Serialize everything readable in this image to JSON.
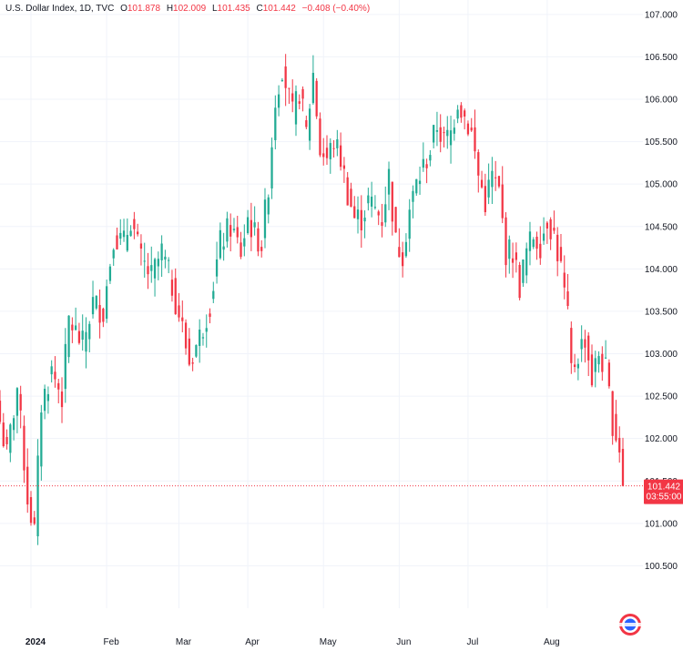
{
  "header": {
    "symbol": "U.S. Dollar Index, 1D, TVC",
    "o_label": "O",
    "o_value": "101.878",
    "h_label": "H",
    "h_value": "102.009",
    "l_label": "L",
    "l_value": "101.435",
    "c_label": "C",
    "c_value": "101.442",
    "change": "−0.408 (−0.40%)"
  },
  "colors": {
    "up": "#22ab94",
    "down": "#f23645",
    "grid": "#f0f3fa",
    "price_label_bg": "#f23645"
  },
  "price_label": {
    "price": "101.442",
    "countdown": "03:55:00"
  },
  "logo_icon": "tradingview-flag-logo",
  "chart_data": {
    "type": "candlestick",
    "title": "U.S. Dollar Index, 1D, TVC",
    "ylim": [
      100.0,
      107.17
    ],
    "y_ticks": [
      100.5,
      101.0,
      101.5,
      102.0,
      102.5,
      103.0,
      103.5,
      104.0,
      104.5,
      105.0,
      105.5,
      106.0,
      106.5,
      107.0
    ],
    "y_tick_labels": [
      "100.500",
      "101.000",
      "101.500",
      "102.000",
      "102.500",
      "103.000",
      "103.500",
      "104.000",
      "104.500",
      "105.000",
      "105.500",
      "106.000",
      "106.500",
      "107.000"
    ],
    "x_tick_labels": [
      {
        "label": "2024",
        "index": 9,
        "bold": true
      },
      {
        "label": "Feb",
        "index": 31
      },
      {
        "label": "Mar",
        "index": 52
      },
      {
        "label": "Apr",
        "index": 72
      },
      {
        "label": "May",
        "index": 94
      },
      {
        "label": "Jun",
        "index": 116
      },
      {
        "label": "Jul",
        "index": 136
      },
      {
        "label": "Aug",
        "index": 159
      }
    ],
    "last_close": 101.442,
    "anchors": [
      [
        0,
        102.2
      ],
      [
        2,
        101.8
      ],
      [
        5,
        102.6
      ],
      [
        8,
        101.3
      ],
      [
        10,
        100.9
      ],
      [
        12,
        102.4
      ],
      [
        15,
        102.8
      ],
      [
        18,
        102.5
      ],
      [
        20,
        103.4
      ],
      [
        24,
        103.1
      ],
      [
        27,
        103.6
      ],
      [
        30,
        103.5
      ],
      [
        33,
        104.4
      ],
      [
        36,
        104.3
      ],
      [
        38,
        104.6
      ],
      [
        41,
        104.1
      ],
      [
        44,
        103.9
      ],
      [
        47,
        104.2
      ],
      [
        50,
        103.8
      ],
      [
        53,
        103.3
      ],
      [
        55,
        102.9
      ],
      [
        58,
        103.2
      ],
      [
        61,
        103.6
      ],
      [
        64,
        104.3
      ],
      [
        67,
        104.5
      ],
      [
        70,
        104.2
      ],
      [
        72,
        104.6
      ],
      [
        74,
        104.4
      ],
      [
        76,
        104.3
      ],
      [
        78,
        105.0
      ],
      [
        80,
        106.0
      ],
      [
        82,
        106.4
      ],
      [
        85,
        105.8
      ],
      [
        87,
        106.1
      ],
      [
        89,
        105.6
      ],
      [
        91,
        106.3
      ],
      [
        93,
        105.4
      ],
      [
        95,
        105.3
      ],
      [
        97,
        105.5
      ],
      [
        99,
        105.3
      ],
      [
        101,
        104.9
      ],
      [
        103,
        104.6
      ],
      [
        105,
        104.6
      ],
      [
        107,
        104.8
      ],
      [
        109,
        104.7
      ],
      [
        111,
        104.6
      ],
      [
        113,
        105.1
      ],
      [
        115,
        104.3
      ],
      [
        117,
        104.2
      ],
      [
        119,
        104.7
      ],
      [
        121,
        105.0
      ],
      [
        123,
        105.2
      ],
      [
        125,
        105.4
      ],
      [
        127,
        105.7
      ],
      [
        129,
        105.5
      ],
      [
        131,
        105.6
      ],
      [
        133,
        106.0
      ],
      [
        135,
        105.8
      ],
      [
        137,
        105.6
      ],
      [
        139,
        105.1
      ],
      [
        141,
        104.8
      ],
      [
        143,
        105.1
      ],
      [
        145,
        104.9
      ],
      [
        147,
        104.2
      ],
      [
        149,
        104.2
      ],
      [
        151,
        103.8
      ],
      [
        153,
        104.2
      ],
      [
        155,
        104.4
      ],
      [
        157,
        104.3
      ],
      [
        159,
        104.6
      ],
      [
        161,
        104.4
      ],
      [
        163,
        104.0
      ],
      [
        165,
        103.4
      ],
      [
        166,
        102.8
      ],
      [
        168,
        103.0
      ],
      [
        170,
        103.2
      ],
      [
        172,
        102.7
      ],
      [
        174,
        103.0
      ],
      [
        176,
        102.8
      ],
      [
        178,
        102.2
      ],
      [
        180,
        101.9
      ],
      [
        181,
        101.442
      ]
    ]
  }
}
